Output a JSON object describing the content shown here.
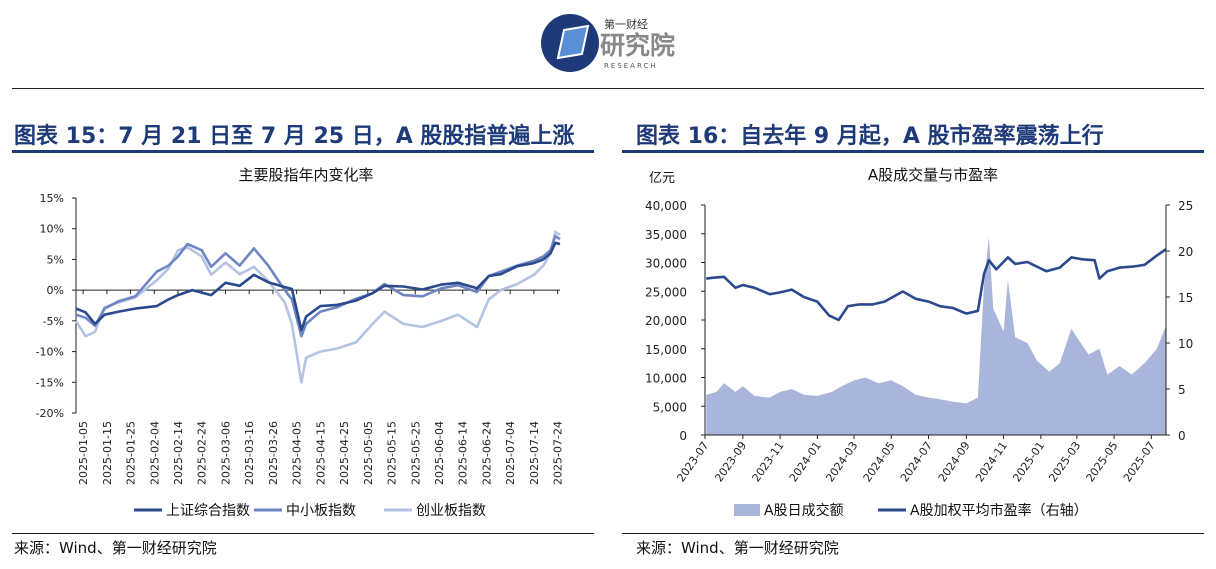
{
  "header": {
    "logo_cn_small": "第一财经",
    "logo_cn_big": "研究院",
    "logo_en": "RESEARCH"
  },
  "left_panel": {
    "figure_title": "图表 15：7 月 21 日至 7 月 25 日，A 股股指普遍上涨",
    "source": "来源：Wind、第一财经研究院"
  },
  "right_panel": {
    "figure_title": "图表 16：自去年 9 月起，A 股市盈率震荡上行",
    "source": "来源：Wind、第一财经研究院"
  },
  "colors": {
    "title_blue": "#1e3a78",
    "shanghai": "#2b4a8e",
    "smallmid": "#6e86c4",
    "chinext": "#b4c2e3",
    "turnover_fill": "#a9b5db",
    "pe_line": "#2b4a8e"
  },
  "chart_data": [
    {
      "type": "line",
      "title": "主要股指年内变化率",
      "ylim": [
        -20,
        15
      ],
      "y_ticks": [
        "15%",
        "10%",
        "5%",
        "0%",
        "-5%",
        "-10%",
        "-15%",
        "-20%"
      ],
      "x_ticks": [
        "2025-01-05",
        "2025-01-15",
        "2025-01-25",
        "2025-02-04",
        "2025-02-14",
        "2025-02-24",
        "2025-03-06",
        "2025-03-16",
        "2025-03-26",
        "2025-04-05",
        "2025-04-15",
        "2025-04-25",
        "2025-05-05",
        "2025-05-15",
        "2025-05-25",
        "2025-06-04",
        "2025-06-14",
        "2025-06-24",
        "2025-07-04",
        "2025-07-14",
        "2025-07-24"
      ],
      "legend_position": "bottom",
      "grid": false,
      "series": [
        {
          "name": "上证综合指数",
          "points": [
            [
              "2025-01-02",
              -3
            ],
            [
              "2025-01-06",
              -3.6
            ],
            [
              "2025-01-10",
              -5.5
            ],
            [
              "2025-01-14",
              -4
            ],
            [
              "2025-01-20",
              -3.5
            ],
            [
              "2025-01-27",
              -3
            ],
            [
              "2025-02-05",
              -2.6
            ],
            [
              "2025-02-10",
              -1.5
            ],
            [
              "2025-02-14",
              -0.8
            ],
            [
              "2025-02-20",
              0
            ],
            [
              "2025-02-28",
              -0.8
            ],
            [
              "2025-03-06",
              1.2
            ],
            [
              "2025-03-12",
              0.7
            ],
            [
              "2025-03-18",
              2.5
            ],
            [
              "2025-03-24",
              1.3
            ],
            [
              "2025-03-31",
              0.5
            ],
            [
              "2025-04-03",
              0.2
            ],
            [
              "2025-04-07",
              -6.5
            ],
            [
              "2025-04-09",
              -4.3
            ],
            [
              "2025-04-15",
              -2.6
            ],
            [
              "2025-04-22",
              -2.4
            ],
            [
              "2025-04-30",
              -1.7
            ],
            [
              "2025-05-07",
              -0.5
            ],
            [
              "2025-05-12",
              0.7
            ],
            [
              "2025-05-20",
              0.6
            ],
            [
              "2025-05-28",
              0.1
            ],
            [
              "2025-06-05",
              0.9
            ],
            [
              "2025-06-12",
              1.2
            ],
            [
              "2025-06-20",
              0.3
            ],
            [
              "2025-06-25",
              2.3
            ],
            [
              "2025-06-30",
              2.6
            ],
            [
              "2025-07-07",
              3.9
            ],
            [
              "2025-07-14",
              4.4
            ],
            [
              "2025-07-18",
              5.0
            ],
            [
              "2025-07-21",
              6.0
            ],
            [
              "2025-07-23",
              7.7
            ],
            [
              "2025-07-25",
              7.5
            ]
          ]
        },
        {
          "name": "中小板指数",
          "points": [
            [
              "2025-01-02",
              -4
            ],
            [
              "2025-01-06",
              -4.5
            ],
            [
              "2025-01-10",
              -5.8
            ],
            [
              "2025-01-14",
              -3
            ],
            [
              "2025-01-20",
              -1.8
            ],
            [
              "2025-01-27",
              -1
            ],
            [
              "2025-02-05",
              3
            ],
            [
              "2025-02-10",
              4
            ],
            [
              "2025-02-14",
              5.5
            ],
            [
              "2025-02-18",
              7.5
            ],
            [
              "2025-02-24",
              6.5
            ],
            [
              "2025-02-28",
              3.8
            ],
            [
              "2025-03-06",
              6
            ],
            [
              "2025-03-12",
              4
            ],
            [
              "2025-03-18",
              6.8
            ],
            [
              "2025-03-24",
              4
            ],
            [
              "2025-03-31",
              0
            ],
            [
              "2025-04-03",
              -1.5
            ],
            [
              "2025-04-07",
              -7.5
            ],
            [
              "2025-04-09",
              -5.5
            ],
            [
              "2025-04-15",
              -3.5
            ],
            [
              "2025-04-22",
              -2.8
            ],
            [
              "2025-04-30",
              -1.4
            ],
            [
              "2025-05-07",
              -0.5
            ],
            [
              "2025-05-12",
              1
            ],
            [
              "2025-05-20",
              -0.8
            ],
            [
              "2025-05-28",
              -1
            ],
            [
              "2025-06-05",
              0.3
            ],
            [
              "2025-06-12",
              0.8
            ],
            [
              "2025-06-20",
              -0.3
            ],
            [
              "2025-06-25",
              2.3
            ],
            [
              "2025-06-30",
              3
            ],
            [
              "2025-07-07",
              4
            ],
            [
              "2025-07-14",
              4.8
            ],
            [
              "2025-07-18",
              5.5
            ],
            [
              "2025-07-21",
              6.5
            ],
            [
              "2025-07-23",
              8.8
            ],
            [
              "2025-07-25",
              8.3
            ]
          ]
        },
        {
          "name": "创业板指数",
          "points": [
            [
              "2025-01-02",
              -5
            ],
            [
              "2025-01-06",
              -7.5
            ],
            [
              "2025-01-10",
              -6.8
            ],
            [
              "2025-01-14",
              -2.8
            ],
            [
              "2025-01-20",
              -2
            ],
            [
              "2025-01-27",
              -1.2
            ],
            [
              "2025-02-05",
              1.6
            ],
            [
              "2025-02-10",
              3.5
            ],
            [
              "2025-02-14",
              6.5
            ],
            [
              "2025-02-18",
              7
            ],
            [
              "2025-02-24",
              5.5
            ],
            [
              "2025-02-28",
              2.5
            ],
            [
              "2025-03-06",
              4.5
            ],
            [
              "2025-03-12",
              2.6
            ],
            [
              "2025-03-18",
              3.8
            ],
            [
              "2025-03-24",
              1.5
            ],
            [
              "2025-03-31",
              -2
            ],
            [
              "2025-04-03",
              -5.5
            ],
            [
              "2025-04-07",
              -15
            ],
            [
              "2025-04-09",
              -11
            ],
            [
              "2025-04-15",
              -10
            ],
            [
              "2025-04-22",
              -9.5
            ],
            [
              "2025-04-30",
              -8.5
            ],
            [
              "2025-05-07",
              -5.5
            ],
            [
              "2025-05-12",
              -3.5
            ],
            [
              "2025-05-20",
              -5.5
            ],
            [
              "2025-05-28",
              -6
            ],
            [
              "2025-06-05",
              -5
            ],
            [
              "2025-06-12",
              -4
            ],
            [
              "2025-06-20",
              -6
            ],
            [
              "2025-06-25",
              -1.5
            ],
            [
              "2025-06-30",
              0
            ],
            [
              "2025-07-07",
              1
            ],
            [
              "2025-07-14",
              2.5
            ],
            [
              "2025-07-18",
              4
            ],
            [
              "2025-07-21",
              6
            ],
            [
              "2025-07-23",
              9.5
            ],
            [
              "2025-07-25",
              9
            ]
          ]
        }
      ]
    },
    {
      "type": "area",
      "title": "A股成交量与市盈率",
      "y_unit": "亿元",
      "ylim_left": [
        0,
        40000
      ],
      "ylim_right": [
        0,
        25
      ],
      "y_ticks_left": [
        "40,000",
        "35,000",
        "30,000",
        "25,000",
        "20,000",
        "15,000",
        "10,000",
        "5,000",
        "0"
      ],
      "y_ticks_right": [
        "25",
        "20",
        "15",
        "10",
        "5",
        "0"
      ],
      "x_ticks": [
        "2023-07",
        "2023-09",
        "2023-11",
        "2024-01",
        "2024-03",
        "2024-05",
        "2024-07",
        "2024-09",
        "2024-11",
        "2025-01",
        "2025-03",
        "2025-05",
        "2025-07"
      ],
      "legend_position": "bottom",
      "grid": false,
      "series": [
        {
          "name": "A股日成交额",
          "axis": "left",
          "type": "area",
          "points": [
            [
              "2023-07-03",
              7000
            ],
            [
              "2023-07-20",
              7500
            ],
            [
              "2023-08-01",
              9000
            ],
            [
              "2023-08-20",
              7500
            ],
            [
              "2023-09-01",
              8500
            ],
            [
              "2023-09-20",
              6800
            ],
            [
              "2023-10-15",
              6500
            ],
            [
              "2023-11-01",
              7500
            ],
            [
              "2023-11-20",
              8000
            ],
            [
              "2023-12-10",
              7000
            ],
            [
              "2024-01-01",
              6800
            ],
            [
              "2024-01-25",
              7500
            ],
            [
              "2024-02-10",
              8500
            ],
            [
              "2024-03-01",
              9500
            ],
            [
              "2024-03-20",
              10000
            ],
            [
              "2024-04-10",
              9000
            ],
            [
              "2024-05-01",
              9500
            ],
            [
              "2024-05-20",
              8500
            ],
            [
              "2024-06-10",
              7000
            ],
            [
              "2024-07-01",
              6500
            ],
            [
              "2024-07-20",
              6200
            ],
            [
              "2024-08-10",
              5800
            ],
            [
              "2024-09-01",
              5500
            ],
            [
              "2024-09-20",
              6500
            ],
            [
              "2024-09-30",
              26000
            ],
            [
              "2024-10-08",
              34500
            ],
            [
              "2024-10-15",
              22000
            ],
            [
              "2024-11-01",
              18000
            ],
            [
              "2024-11-08",
              27000
            ],
            [
              "2024-11-20",
              17000
            ],
            [
              "2024-12-10",
              16000
            ],
            [
              "2024-12-25",
              13000
            ],
            [
              "2025-01-15",
              11000
            ],
            [
              "2025-02-01",
              12500
            ],
            [
              "2025-02-20",
              18500
            ],
            [
              "2025-03-01",
              17000
            ],
            [
              "2025-03-20",
              14000
            ],
            [
              "2025-04-07",
              15000
            ],
            [
              "2025-04-20",
              10500
            ],
            [
              "2025-05-10",
              12000
            ],
            [
              "2025-05-30",
              10500
            ],
            [
              "2025-06-20",
              12500
            ],
            [
              "2025-07-10",
              15000
            ],
            [
              "2025-07-25",
              19000
            ]
          ]
        },
        {
          "name": "A股加权平均市盈率（右轴）",
          "axis": "right",
          "type": "line",
          "points": [
            [
              "2023-07-03",
              17
            ],
            [
              "2023-07-15",
              17.1
            ],
            [
              "2023-08-01",
              17.2
            ],
            [
              "2023-08-20",
              16
            ],
            [
              "2023-09-01",
              16.3
            ],
            [
              "2023-09-20",
              16
            ],
            [
              "2023-10-15",
              15.3
            ],
            [
              "2023-11-01",
              15.5
            ],
            [
              "2023-11-20",
              15.8
            ],
            [
              "2023-12-10",
              15
            ],
            [
              "2024-01-01",
              14.5
            ],
            [
              "2024-01-20",
              13
            ],
            [
              "2024-02-05",
              12.5
            ],
            [
              "2024-02-20",
              14
            ],
            [
              "2024-03-10",
              14.2
            ],
            [
              "2024-04-01",
              14.2
            ],
            [
              "2024-04-20",
              14.5
            ],
            [
              "2024-05-20",
              15.6
            ],
            [
              "2024-06-10",
              14.8
            ],
            [
              "2024-07-01",
              14.5
            ],
            [
              "2024-07-20",
              14
            ],
            [
              "2024-08-10",
              13.8
            ],
            [
              "2024-09-01",
              13.2
            ],
            [
              "2024-09-20",
              13.5
            ],
            [
              "2024-09-30",
              17.5
            ],
            [
              "2024-10-08",
              19
            ],
            [
              "2024-10-20",
              18
            ],
            [
              "2024-11-08",
              19.3
            ],
            [
              "2024-11-20",
              18.6
            ],
            [
              "2024-12-10",
              18.8
            ],
            [
              "2025-01-10",
              17.8
            ],
            [
              "2025-02-01",
              18.2
            ],
            [
              "2025-02-20",
              19.3
            ],
            [
              "2025-03-10",
              19.1
            ],
            [
              "2025-03-30",
              19
            ],
            [
              "2025-04-07",
              17
            ],
            [
              "2025-04-20",
              17.8
            ],
            [
              "2025-05-10",
              18.2
            ],
            [
              "2025-06-01",
              18.3
            ],
            [
              "2025-06-20",
              18.5
            ],
            [
              "2025-07-10",
              19.5
            ],
            [
              "2025-07-25",
              20.2
            ]
          ]
        }
      ]
    }
  ]
}
